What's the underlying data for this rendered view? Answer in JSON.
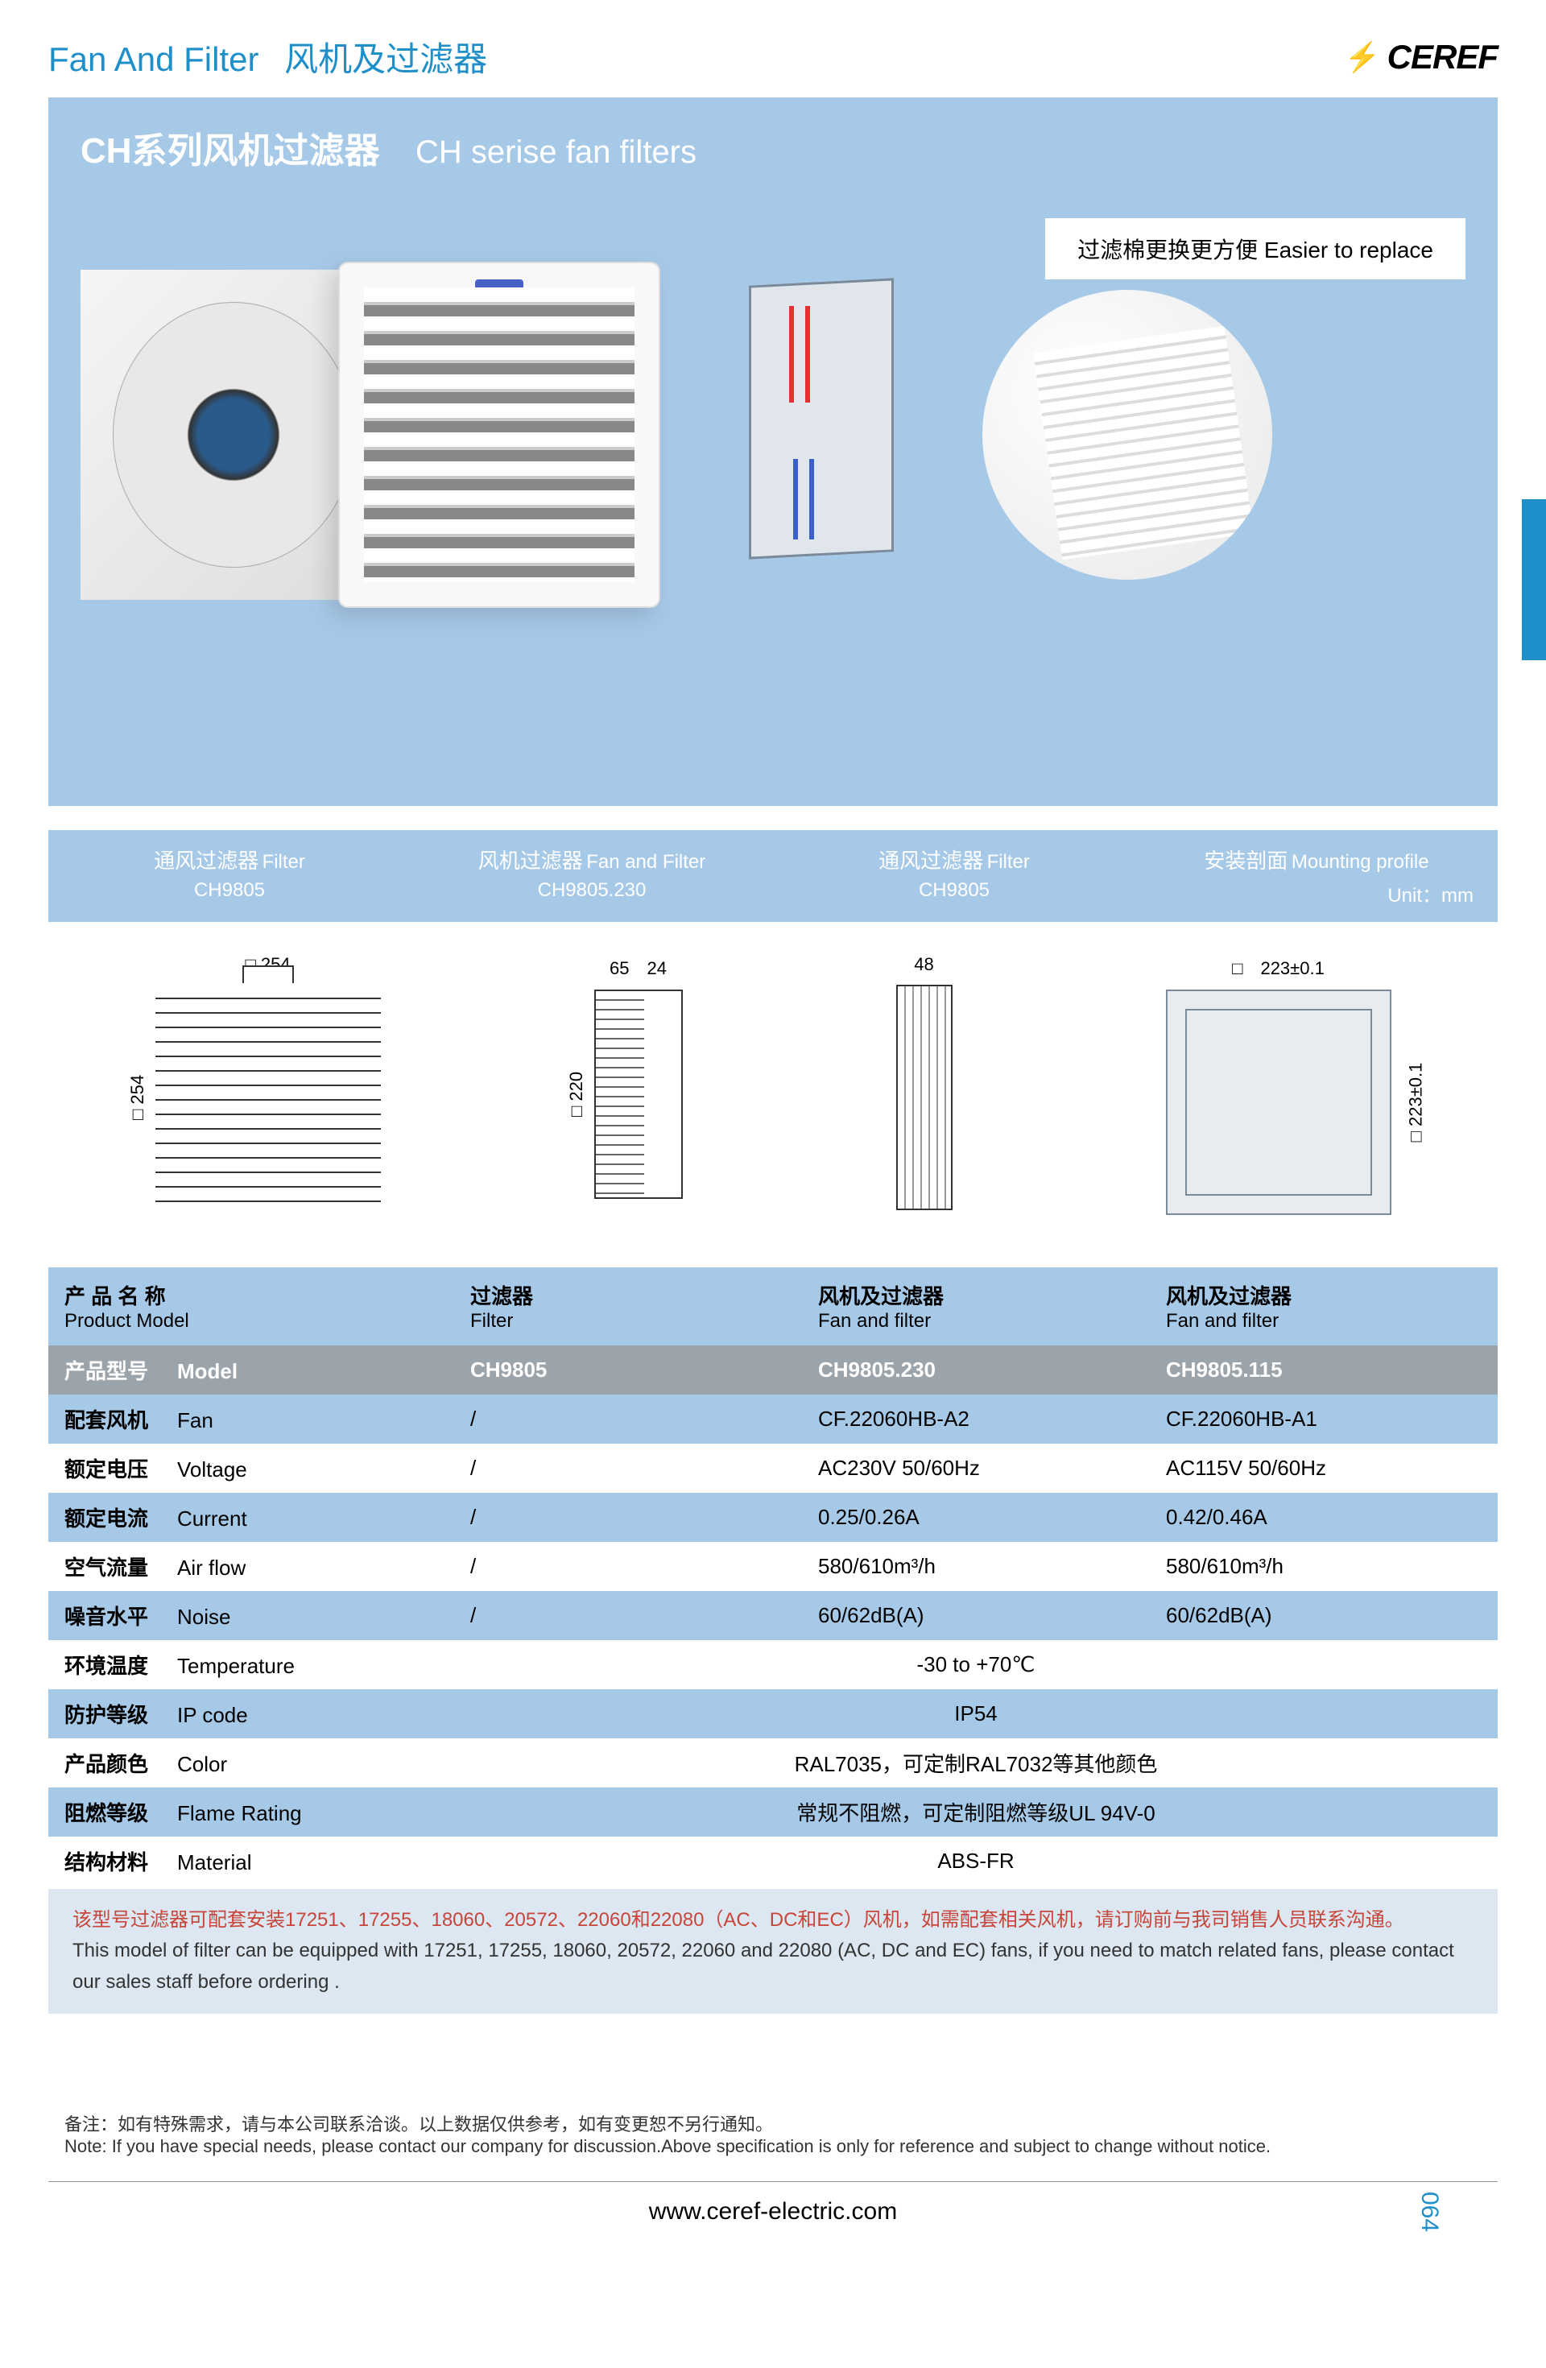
{
  "header": {
    "title_en": "Fan And Filter",
    "title_cn": "风机及过滤器",
    "brand": "CEREF"
  },
  "hero": {
    "title_cn": "CH系列风机过滤器",
    "title_en": "CH serise fan filters",
    "badge": "过滤棉更换更方便  Easier to replace"
  },
  "sections": [
    {
      "cn": "通风过滤器",
      "en": "Filter",
      "model": "CH9805"
    },
    {
      "cn": "风机过滤器",
      "en": "Fan and Filter",
      "model": "CH9805.230"
    },
    {
      "cn": "通风过滤器",
      "en": "Filter",
      "model": "CH9805"
    },
    {
      "cn": "安装剖面",
      "en": "Mounting profile",
      "model": "Unit：mm"
    }
  ],
  "drawings": {
    "filter_w": "□ 254",
    "filter_h": "□ 254",
    "fan_d": "65",
    "fan_d2": "24",
    "fan_h": "□ 220",
    "profile_w": "48",
    "mount_w": "□　223±0.1",
    "mount_h": "□ 223±0.1"
  },
  "table": {
    "headers": [
      {
        "cn": "产 品 名 称",
        "en": "Product Model"
      },
      {
        "cn": "过滤器",
        "en": "Filter"
      },
      {
        "cn": "风机及过滤器",
        "en": "Fan and filter"
      },
      {
        "cn": "风机及过滤器",
        "en": "Fan and filter"
      }
    ],
    "model_row": {
      "label_cn": "产品型号",
      "label_en": "Model",
      "v1": "CH9805",
      "v2": "CH9805.230",
      "v3": "CH9805.115"
    },
    "rows": [
      {
        "cn": "配套风机",
        "en": "Fan",
        "v1": "/",
        "v2": "CF.22060HB-A2",
        "v3": "CF.22060HB-A1",
        "cls": "d0"
      },
      {
        "cn": "额定电压",
        "en": "Voltage",
        "v1": "/",
        "v2": "AC230V 50/60Hz",
        "v3": "AC115V 50/60Hz",
        "cls": "d1"
      },
      {
        "cn": "额定电流",
        "en": "Current",
        "v1": "/",
        "v2": "0.25/0.26A",
        "v3": "0.42/0.46A",
        "cls": "d0"
      },
      {
        "cn": "空气流量",
        "en": "Air flow",
        "v1": "/",
        "v2": "580/610m³/h",
        "v3": "580/610m³/h",
        "cls": "d1"
      },
      {
        "cn": "噪音水平",
        "en": "Noise",
        "v1": "/",
        "v2": "60/62dB(A)",
        "v3": "60/62dB(A)",
        "cls": "d0"
      },
      {
        "cn": "环境温度",
        "en": "Temperature",
        "span": "-30 to +70℃",
        "cls": "d1"
      },
      {
        "cn": "防护等级",
        "en": "IP code",
        "span": "IP54",
        "cls": "d0"
      },
      {
        "cn": "产品颜色",
        "en": "Color",
        "span": "RAL7035，可定制RAL7032等其他颜色",
        "cls": "d1"
      },
      {
        "cn": "阻燃等级",
        "en": "Flame Rating",
        "span": "常规不阻燃，可定制阻燃等级UL 94V-0",
        "cls": "d0"
      },
      {
        "cn": "结构材料",
        "en": "Material",
        "span": "ABS-FR",
        "cls": "d1"
      }
    ]
  },
  "note": {
    "cn": "该型号过滤器可配套安装17251、17255、18060、20572、22060和22080（AC、DC和EC）风机，如需配套相关风机，请订购前与我司销售人员联系沟通。",
    "en": "This model of filter can be equipped with 17251, 17255, 18060, 20572, 22060 and 22080 (AC, DC and EC) fans, if you need to match related fans, please contact our sales staff before ordering ."
  },
  "footnote": {
    "cn": "备注：如有特殊需求，请与本公司联系洽谈。以上数据仅供参考，如有变更恕不另行通知。",
    "en": "Note: If you have special needs, please contact our company for discussion.Above specification is only for reference and subject to change without notice."
  },
  "footer": {
    "url": "www.ceref-electric.com",
    "page": "064"
  },
  "colors": {
    "primary_blue": "#a7c9e8",
    "text_blue": "#1e8fc8",
    "model_gray": "#9ba3ab"
  }
}
